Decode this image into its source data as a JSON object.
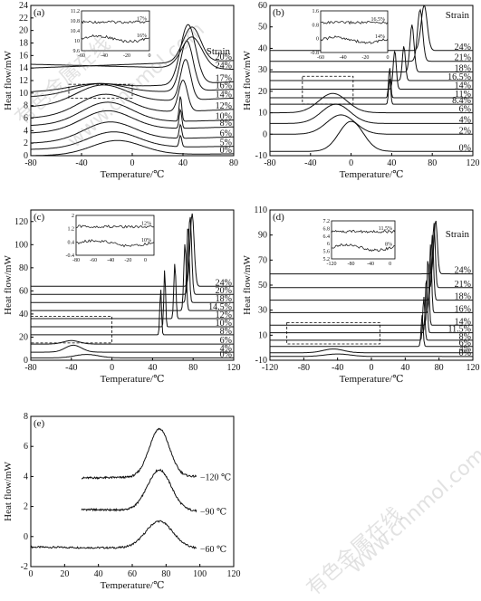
{
  "figure": {
    "watermark_cn": "有色金属在线",
    "watermark_url": "www.cnnmol.com"
  },
  "chart_data": [
    {
      "type": "line",
      "panel": "(a)",
      "xlabel": "Temperature/℃",
      "ylabel": "Heat flow/mW",
      "xlim": [
        -80,
        80
      ],
      "ylim": [
        0,
        24
      ],
      "xticks": [
        -80,
        -40,
        0,
        40,
        80
      ],
      "yticks": [
        0,
        2,
        4,
        6,
        8,
        10,
        12,
        14,
        16,
        18,
        20,
        22,
        24
      ],
      "legend_title": "Strain",
      "series": [
        {
          "name": "0%",
          "baseline": 0.0,
          "peaks": [
            [
              -12,
              2.3,
              20
            ]
          ],
          "end": 0.3
        },
        {
          "name": "5%",
          "baseline": 1.0,
          "peaks": [
            [
              -15,
              2.6,
              20
            ],
            [
              38,
              1.8,
              1
            ]
          ],
          "end": 1.5
        },
        {
          "name": "6%",
          "baseline": 2.0,
          "peaks": [
            [
              -18,
              3.0,
              20
            ],
            [
              38,
              2.2,
              1
            ]
          ],
          "end": 3.0
        },
        {
          "name": "8%",
          "baseline": 3.6,
          "peaks": [
            [
              -20,
              3.2,
              20
            ],
            [
              38,
              3.0,
              1
            ]
          ],
          "end": 4.6
        },
        {
          "name": "10%",
          "baseline": 4.8,
          "peaks": [
            [
              -20,
              3.4,
              20
            ],
            [
              38,
              4.0,
              1
            ]
          ],
          "end": 5.7
        },
        {
          "name": "12%",
          "baseline": 6.0,
          "peaks": [
            [
              -22,
              3.3,
              20
            ],
            [
              40,
              5.0,
              3.5
            ]
          ],
          "end": 7.4
        },
        {
          "name": "14%",
          "baseline": 7.8,
          "peaks": [
            [
              -24,
              3.0,
              20
            ],
            [
              42,
              6.5,
              4
            ]
          ],
          "end": 9.2
        },
        {
          "name": "16%",
          "baseline": 9.4,
          "peaks": [
            [
              -26,
              1.7,
              20
            ],
            [
              43,
              8.0,
              5
            ]
          ],
          "end": 10.6
        },
        {
          "name": "17%",
          "baseline": 10.2,
          "peaks": [
            [
              -30,
              0.8,
              18
            ],
            [
              44,
              9.5,
              6
            ]
          ],
          "end": 11.8
        },
        {
          "name": "20%",
          "baseline": 14.0,
          "peaks": [
            [
              47,
              5.6,
              7
            ]
          ],
          "end": 15.2
        },
        {
          "name": "24%",
          "baseline": 14.6,
          "peaks": [
            [
              47,
              5.0,
              8
            ]
          ],
          "end": 13.8
        }
      ],
      "inset": {
        "xlim": [
          -60,
          0
        ],
        "ylim": [
          9.6,
          11.2
        ],
        "xticks": [
          -60,
          -40,
          -20,
          0
        ],
        "yticks": [
          9.6,
          10.0,
          10.4,
          10.8,
          11.2
        ],
        "labels": [
          "17%",
          "16%"
        ]
      }
    },
    {
      "type": "line",
      "panel": "(b)",
      "xlabel": "Temperature/℃",
      "ylabel": "Heat flow/mW",
      "xlim": [
        -80,
        120
      ],
      "ylim": [
        -10,
        60
      ],
      "xticks": [
        -80,
        -40,
        0,
        40,
        80,
        120
      ],
      "yticks": [
        -10,
        0,
        10,
        20,
        30,
        40,
        50,
        60
      ],
      "legend_title": "Strain",
      "series": [
        {
          "name": "0%",
          "baseline": -8.0,
          "peaks": [
            [
              0,
              14,
              12
            ]
          ],
          "end": -8.0
        },
        {
          "name": "2%",
          "baseline": 0.0,
          "peaks": [
            [
              -10,
              9,
              14
            ]
          ],
          "end": 0.0
        },
        {
          "name": "4%",
          "baseline": 5.0,
          "peaks": [
            [
              -15,
              9,
              14
            ]
          ],
          "end": 5.0
        },
        {
          "name": "6%",
          "baseline": 10.0,
          "peaks": [
            [
              -18,
              9,
              14
            ]
          ],
          "end": 10.0
        },
        {
          "name": "8.4%",
          "baseline": 14.0,
          "peaks": [
            [
              38,
              12,
              1
            ]
          ],
          "end": 14.0
        },
        {
          "name": "11%",
          "baseline": 17.0,
          "peaks": [
            [
              38,
              14,
              1
            ]
          ],
          "end": 17.0
        },
        {
          "name": "14%",
          "baseline": 21.0,
          "peaks": [
            [
              43,
              18,
              1.5
            ]
          ],
          "end": 21.0
        },
        {
          "name": "16.5%",
          "baseline": 25.0,
          "peaks": [
            [
              52,
              16,
              1.5
            ]
          ],
          "end": 25.0
        },
        {
          "name": "18%",
          "baseline": 29.0,
          "peaks": [
            [
              60,
              22,
              2
            ]
          ],
          "end": 29.0
        },
        {
          "name": "21%",
          "baseline": 34.0,
          "peaks": [
            [
              68,
              24,
              2.5
            ]
          ],
          "end": 34.0
        },
        {
          "name": "24%",
          "baseline": 39.0,
          "peaks": [
            [
              72,
              21,
              3
            ]
          ],
          "end": 39.0
        }
      ],
      "inset": {
        "xlim": [
          -60,
          0
        ],
        "ylim": [
          -0.8,
          1.6
        ],
        "xticks": [
          -60,
          -40,
          -20,
          0
        ],
        "yticks": [
          -0.8,
          0,
          0.8,
          1.6
        ],
        "labels": [
          "16.5%",
          "14%"
        ]
      }
    },
    {
      "type": "line",
      "panel": "(c)",
      "xlabel": "Temperature/℃",
      "ylabel": "Heat flow/mW",
      "xlim": [
        -80,
        120
      ],
      "ylim": [
        0,
        130
      ],
      "xticks": [
        -80,
        -40,
        0,
        40,
        80,
        120
      ],
      "yticks": [
        0,
        20,
        40,
        60,
        80,
        100,
        120
      ],
      "series": [
        {
          "name": "0%",
          "baseline": 2.0,
          "peaks": [
            [
              -25,
              3,
              12
            ]
          ],
          "end": 2.0
        },
        {
          "name": "4%",
          "baseline": 7.0,
          "peaks": [
            [
              -38,
              6,
              8
            ]
          ],
          "end": 7.0
        },
        {
          "name": "6%",
          "baseline": 14.0,
          "peaks": [
            [
              -40,
              3,
              8
            ]
          ],
          "end": 14.0
        },
        {
          "name": "8%",
          "baseline": 22.0,
          "peaks": [
            [
              48,
              40,
              0.8
            ]
          ],
          "end": 22.0
        },
        {
          "name": "10%",
          "baseline": 29.0,
          "peaks": [
            [
              52,
              50,
              0.8
            ]
          ],
          "end": 29.0
        },
        {
          "name": "12%",
          "baseline": 36.0,
          "peaks": [
            [
              62,
              48,
              1
            ]
          ],
          "end": 36.0
        },
        {
          "name": "14.5%",
          "baseline": 43.0,
          "peaks": [
            [
              72,
              58,
              1.2
            ]
          ],
          "end": 43.0
        },
        {
          "name": "18%",
          "baseline": 50.0,
          "peaks": [
            [
              75,
              68,
              1.2
            ]
          ],
          "end": 50.0
        },
        {
          "name": "20%",
          "baseline": 57.0,
          "peaks": [
            [
              77,
              68,
              1.5
            ]
          ],
          "end": 57.0
        },
        {
          "name": "24%",
          "baseline": 64.0,
          "peaks": [
            [
              79,
              63,
              2
            ]
          ],
          "end": 64.0
        }
      ],
      "inset": {
        "xlim": [
          -80,
          10
        ],
        "ylim": [
          -0.4,
          2.0
        ],
        "xticks": [
          -80,
          -60,
          -40,
          -20,
          0
        ],
        "yticks": [
          -0.4,
          0.4,
          1.2,
          2.0
        ],
        "labels": [
          "12%",
          "10%"
        ]
      }
    },
    {
      "type": "line",
      "panel": "(d)",
      "xlabel": "Temperature/℃",
      "ylabel": "Heat flow/mW",
      "xlim": [
        -120,
        120
      ],
      "ylim": [
        -10,
        110
      ],
      "xticks": [
        -120,
        -80,
        -40,
        0,
        40,
        80,
        120
      ],
      "yticks": [
        -10,
        10,
        30,
        50,
        70,
        90,
        110
      ],
      "legend_title": "Strain",
      "series": [
        {
          "name": "0%",
          "baseline": -7.0,
          "peaks": [
            [
              -40,
              2,
              15
            ]
          ],
          "end": -7.0
        },
        {
          "name": "4%",
          "baseline": -4.0,
          "peaks": [
            [
              -45,
              3,
              12
            ]
          ],
          "end": -4.0
        },
        {
          "name": "6%",
          "baseline": 1.0,
          "peaks": [
            [
              60,
              25,
              1.2
            ]
          ],
          "end": 1.0
        },
        {
          "name": "8%",
          "baseline": 6.0,
          "peaks": [
            [
              62,
              35,
              1.2
            ]
          ],
          "end": 6.0
        },
        {
          "name": "11.5%",
          "baseline": 12.0,
          "peaks": [
            [
              65,
              45,
              1.2
            ]
          ],
          "end": 12.0
        },
        {
          "name": "14%",
          "baseline": 18.0,
          "peaks": [
            [
              67,
              55,
              1.2
            ]
          ],
          "end": 18.0
        },
        {
          "name": "16%",
          "baseline": 28.0,
          "peaks": [
            [
              70,
              55,
              1.2
            ]
          ],
          "end": 28.0
        },
        {
          "name": "18%",
          "baseline": 38.0,
          "peaks": [
            [
              72,
              52,
              1.5
            ]
          ],
          "end": 38.0
        },
        {
          "name": "21%",
          "baseline": 48.0,
          "peaks": [
            [
              74,
              52,
              1.5
            ]
          ],
          "end": 48.0
        },
        {
          "name": "24%",
          "baseline": 59.0,
          "peaks": [
            [
              76,
              43,
              2
            ]
          ],
          "end": 59.0
        }
      ],
      "inset": {
        "xlim": [
          -120,
          10
        ],
        "ylim": [
          5.2,
          7.2
        ],
        "xticks": [
          -120,
          -80,
          -40,
          0
        ],
        "yticks": [
          5.2,
          5.6,
          6.0,
          6.4,
          6.8,
          7.2
        ],
        "labels": [
          "11.5%",
          "8%"
        ]
      }
    },
    {
      "type": "line",
      "panel": "(e)",
      "xlabel": "Temperature/℃",
      "ylabel": "Heat flow/mW",
      "xlim": [
        0,
        120
      ],
      "ylim": [
        -2,
        8
      ],
      "xticks": [
        0,
        20,
        40,
        60,
        80,
        100,
        120
      ],
      "yticks": [
        -2,
        0,
        2,
        4,
        6,
        8
      ],
      "series": [
        {
          "name": "−60 ℃",
          "baseline": -0.7,
          "peaks": [
            [
              76,
              1.8,
              8
            ]
          ],
          "end": -0.8,
          "start": 0
        },
        {
          "name": "−90 ℃",
          "baseline": 1.8,
          "peaks": [
            [
              76,
              2.7,
              7
            ]
          ],
          "end": 1.7,
          "start": 30
        },
        {
          "name": "−120 ℃",
          "baseline": 3.9,
          "peaks": [
            [
              76,
              3.2,
              6
            ]
          ],
          "end": 4.0,
          "start": 30
        }
      ]
    }
  ]
}
